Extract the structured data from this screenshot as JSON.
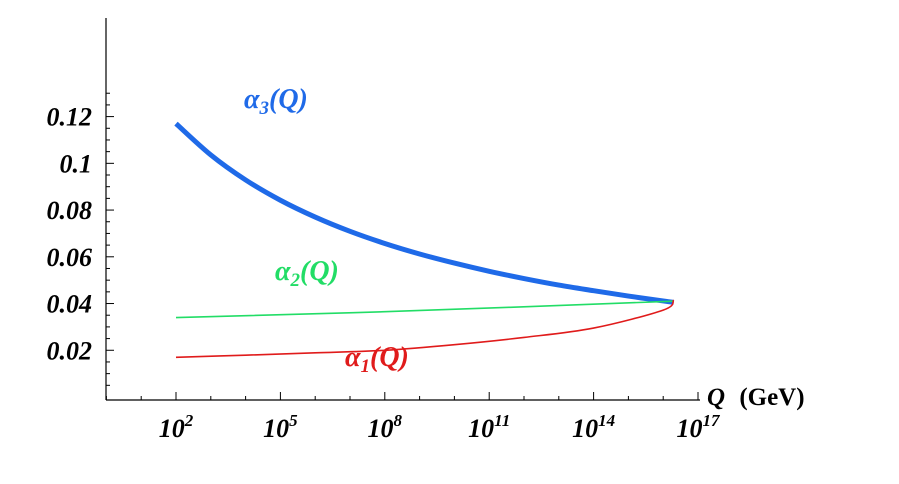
{
  "chart_data": {
    "type": "line",
    "title": "",
    "xlabel": "Q (GeV)",
    "xlabel_var": "Q",
    "xlabel_unit": "(GeV)",
    "ylabel": "",
    "x_scale": "log",
    "x_ticks": [
      {
        "value": 100,
        "base": "10",
        "exp": "2"
      },
      {
        "value": 100000,
        "base": "10",
        "exp": "5"
      },
      {
        "value": 100000000,
        "base": "10",
        "exp": "8"
      },
      {
        "value": 100000000000,
        "base": "10",
        "exp": "11"
      },
      {
        "value": 100000000000000,
        "base": "10",
        "exp": "14"
      },
      {
        "value": 100000000000000000,
        "base": "10",
        "exp": "17"
      }
    ],
    "y_ticks": [
      "0.02",
      "0.04",
      "0.06",
      "0.08",
      "0.1",
      "0.12"
    ],
    "ylim": [
      0,
      0.13
    ],
    "grid": false,
    "series": [
      {
        "name": "α3(Q)",
        "greek": "α",
        "sub": "3",
        "arg": "(Q)",
        "color": "#1f6ae8",
        "x": [
          100,
          1000,
          10000,
          100000,
          1000000,
          10000000,
          100000000,
          1000000000,
          10000000000,
          100000000000,
          1000000000000,
          10000000000000,
          100000000000000,
          1000000000000000,
          10000000000000000,
          20000000000000000
        ],
        "y": [
          0.117,
          0.1036,
          0.0929,
          0.0842,
          0.077,
          0.0709,
          0.0657,
          0.0612,
          0.0573,
          0.0538,
          0.0507,
          0.0479,
          0.0455,
          0.0432,
          0.0411,
          0.0405
        ]
      },
      {
        "name": "α2(Q)",
        "greek": "α",
        "sub": "2",
        "arg": "(Q)",
        "color": "#22dd66",
        "x": [
          100,
          100000000,
          20000000000000000
        ],
        "y": [
          0.034,
          0.0365,
          0.041
        ]
      },
      {
        "name": "α1(Q)",
        "greek": "α",
        "sub": "1",
        "arg": "(Q)",
        "color": "#e01b1b",
        "x": [
          100,
          10000,
          1000000,
          100000000,
          10000000000,
          1000000000000,
          100000000000000,
          10000000000000000,
          20000000000000000
        ],
        "y": [
          0.017,
          0.0179,
          0.0189,
          0.02,
          0.0224,
          0.0255,
          0.0295,
          0.0372,
          0.0415
        ]
      }
    ]
  }
}
